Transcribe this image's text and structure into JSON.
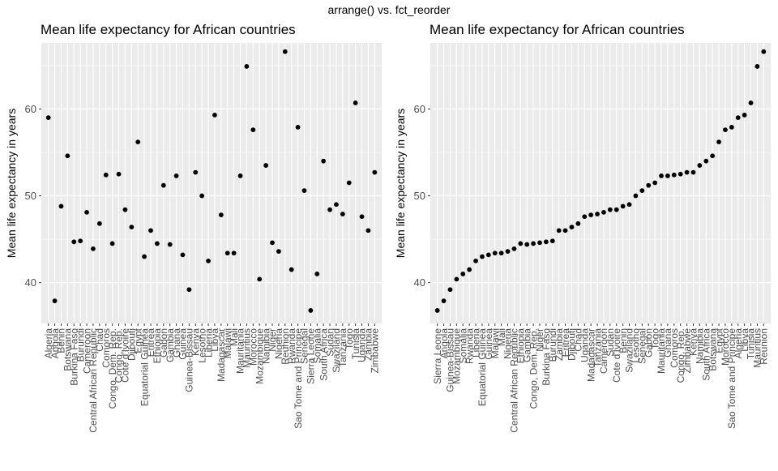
{
  "figure": {
    "suptitle": "arrange() vs. fct_reorder"
  },
  "chart_data": [
    {
      "type": "scatter",
      "title": "Mean life expectancy for African countries",
      "xlabel": "",
      "ylabel": "Mean life expectancy in years",
      "ylim": [
        35.3,
        67.6
      ],
      "yticks": [
        40,
        50,
        60
      ],
      "grid": true,
      "point_color": "#000000",
      "panel_color": "#EBEBEB",
      "categories": [
        "Algeria",
        "Angola",
        "Benin",
        "Botswana",
        "Burkina Faso",
        "Burundi",
        "Cameroon",
        "Central African Republic",
        "Chad",
        "Comoros",
        "Congo, Dem. Rep.",
        "Congo, Rep.",
        "Cote d'Ivoire",
        "Djibouti",
        "Egypt",
        "Equatorial Guinea",
        "Eritrea",
        "Ethiopia",
        "Gabon",
        "Gambia",
        "Ghana",
        "Guinea",
        "Guinea-Bissau",
        "Kenya",
        "Lesotho",
        "Liberia",
        "Libya",
        "Madagascar",
        "Malawi",
        "Mali",
        "Mauritania",
        "Mauritius",
        "Morocco",
        "Mozambique",
        "Namibia",
        "Niger",
        "Nigeria",
        "Reunion",
        "Rwanda",
        "Sao Tome and Principe",
        "Senegal",
        "Sierra Leone",
        "Somalia",
        "South Africa",
        "Sudan",
        "Swaziland",
        "Tanzania",
        "Togo",
        "Tunisia",
        "Uganda",
        "Zambia",
        "Zimbabwe"
      ],
      "values": [
        59.0,
        37.9,
        48.8,
        54.6,
        44.7,
        44.8,
        48.1,
        43.9,
        46.8,
        52.4,
        44.5,
        52.5,
        48.4,
        46.4,
        56.2,
        43.0,
        46.0,
        44.5,
        51.2,
        44.4,
        52.3,
        43.2,
        39.2,
        52.7,
        50.0,
        42.5,
        59.3,
        47.8,
        43.4,
        43.4,
        52.3,
        64.9,
        57.6,
        40.4,
        53.5,
        44.6,
        43.6,
        66.6,
        41.5,
        57.9,
        50.6,
        36.8,
        41.0,
        54.0,
        48.4,
        49.0,
        47.9,
        51.5,
        60.7,
        47.6,
        46.0,
        52.7
      ]
    },
    {
      "type": "scatter",
      "title": "Mean life expectancy for African countries",
      "xlabel": "",
      "ylabel": "Mean life expectancy in years",
      "ylim": [
        35.3,
        67.6
      ],
      "yticks": [
        40,
        50,
        60
      ],
      "grid": true,
      "point_color": "#000000",
      "panel_color": "#EBEBEB",
      "categories": [
        "Sierra Leone",
        "Angola",
        "Guinea-Bissau",
        "Mozambique",
        "Somalia",
        "Rwanda",
        "Liberia",
        "Equatorial Guinea",
        "Guinea",
        "Malawi",
        "Mali",
        "Nigeria",
        "Central African Republic",
        "Ethiopia",
        "Gambia",
        "Congo, Dem. Rep.",
        "Niger",
        "Burkina Faso",
        "Burundi",
        "Zambia",
        "Eritrea",
        "Djibouti",
        "Chad",
        "Uganda",
        "Madagascar",
        "Tanzania",
        "Cameroon",
        "Sudan",
        "Cote d'Ivoire",
        "Benin",
        "Swaziland",
        "Lesotho",
        "Senegal",
        "Gabon",
        "Togo",
        "Mauritania",
        "Ghana",
        "Comoros",
        "Congo, Rep.",
        "Zimbabwe",
        "Kenya",
        "Namibia",
        "South Africa",
        "Botswana",
        "Egypt",
        "Morocco",
        "Sao Tome and Principe",
        "Algeria",
        "Libya",
        "Tunisia",
        "Mauritius",
        "Reunion"
      ],
      "values": [
        36.8,
        37.9,
        39.2,
        40.4,
        41.0,
        41.5,
        42.5,
        43.0,
        43.2,
        43.4,
        43.4,
        43.6,
        43.9,
        44.5,
        44.4,
        44.5,
        44.6,
        44.7,
        44.8,
        46.0,
        46.0,
        46.4,
        46.8,
        47.6,
        47.8,
        47.9,
        48.1,
        48.4,
        48.4,
        48.8,
        49.0,
        50.0,
        50.6,
        51.2,
        51.5,
        52.3,
        52.3,
        52.4,
        52.5,
        52.7,
        52.7,
        53.5,
        54.0,
        54.6,
        56.2,
        57.6,
        57.9,
        59.0,
        59.3,
        60.7,
        64.9,
        66.6
      ]
    }
  ]
}
